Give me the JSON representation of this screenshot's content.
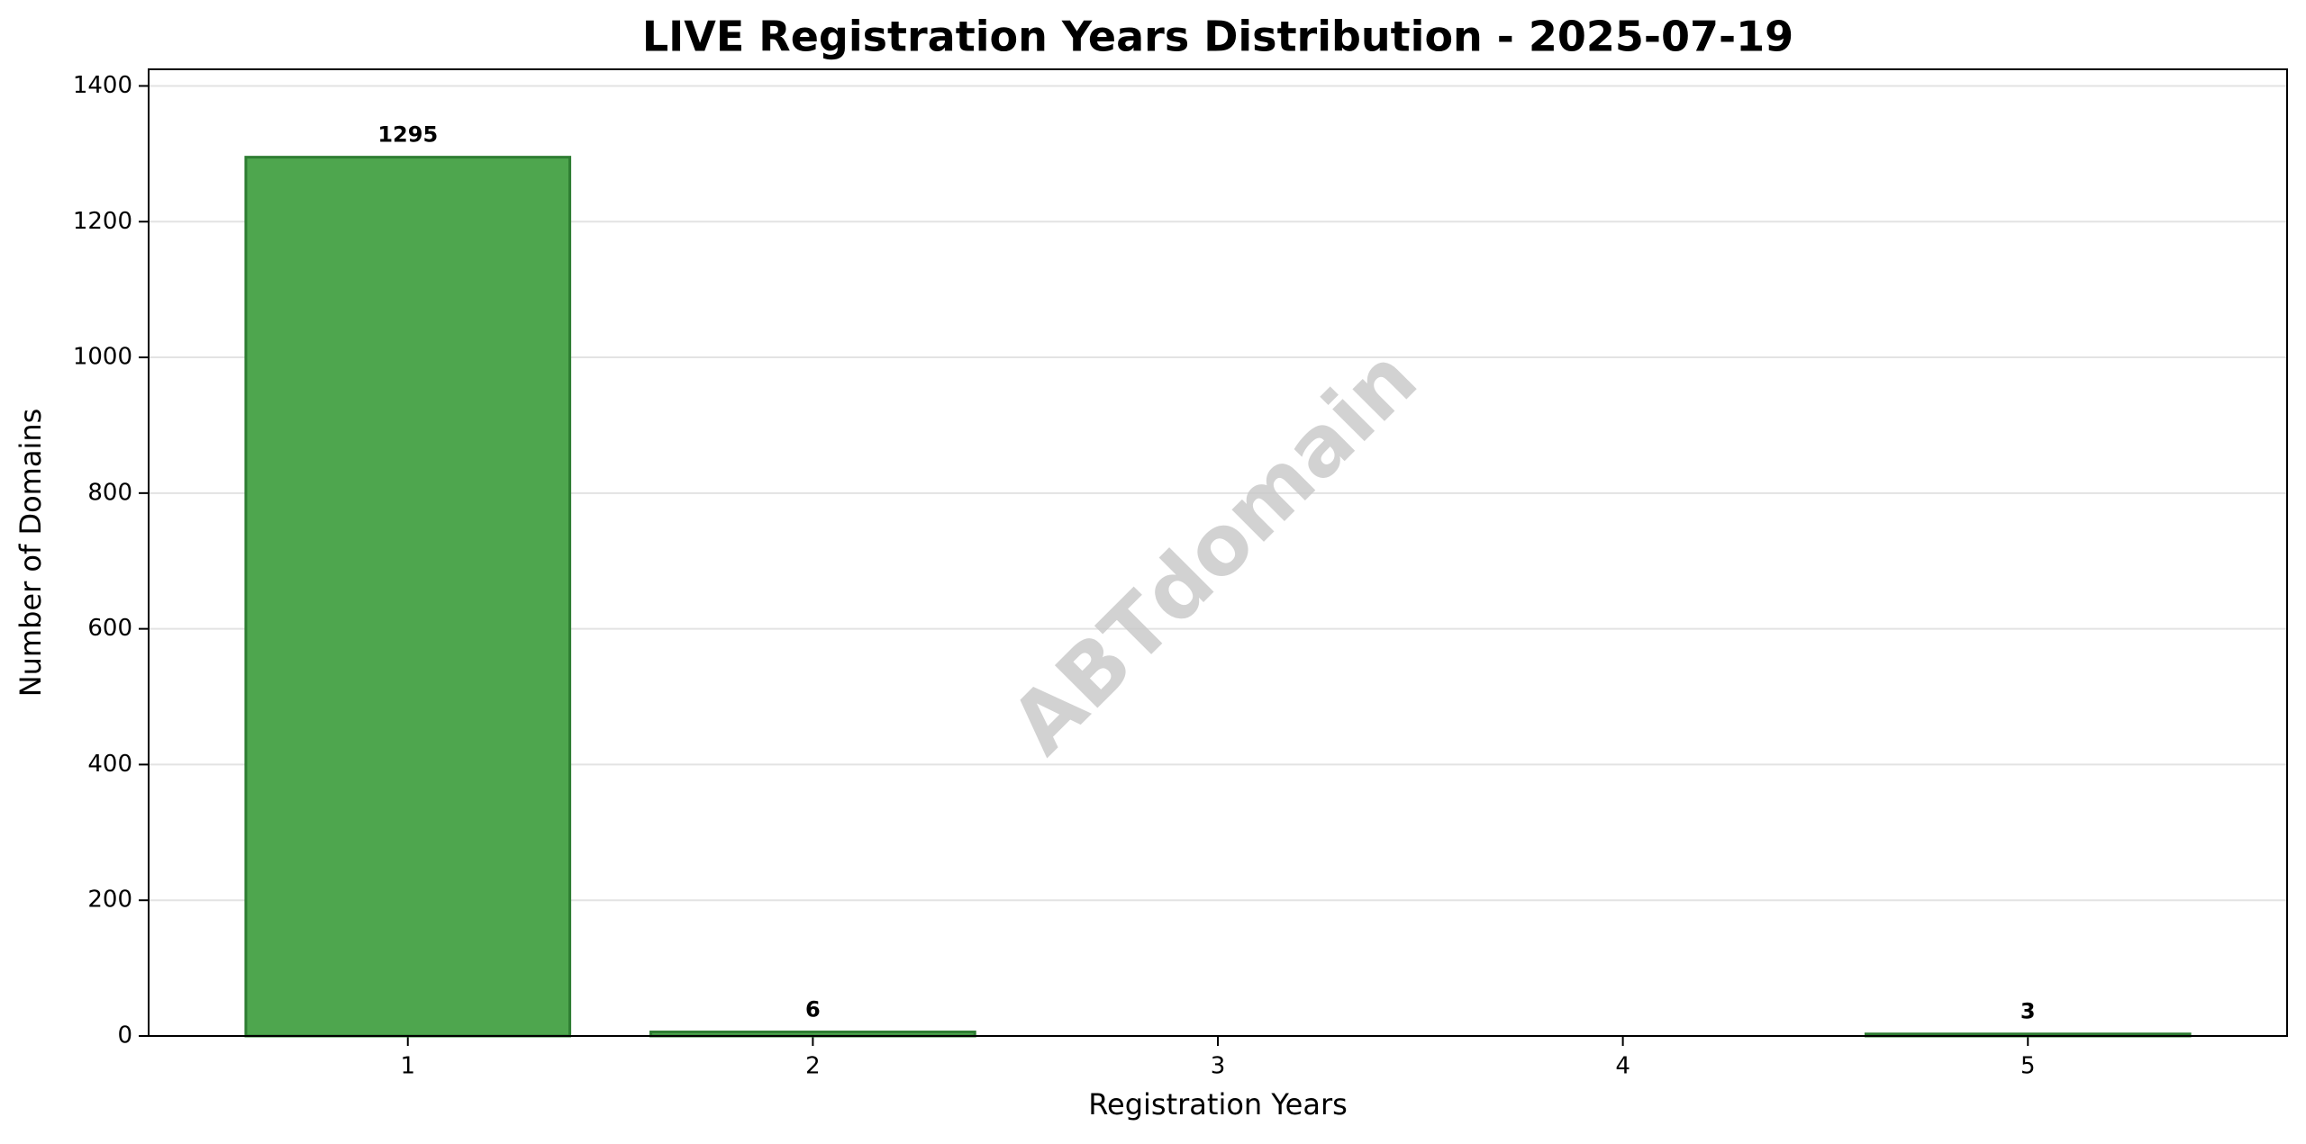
{
  "chart_data": {
    "type": "bar",
    "title": "LIVE Registration Years Distribution - 2025-07-19",
    "xlabel": "Registration Years",
    "ylabel": "Number of Domains",
    "watermark": "ABTdomain",
    "x": [
      1,
      2,
      5
    ],
    "values": [
      1295,
      6,
      3
    ],
    "color": "#4ea64e",
    "edgecolor": "#2e7d32",
    "xlim": [
      0.36,
      5.64
    ],
    "xticks": [
      1,
      2,
      3,
      4,
      5
    ],
    "ylim": [
      0,
      1424.5
    ],
    "yticks": [
      0,
      200,
      400,
      600,
      800,
      1000,
      1200,
      1400
    ],
    "grid": true
  }
}
